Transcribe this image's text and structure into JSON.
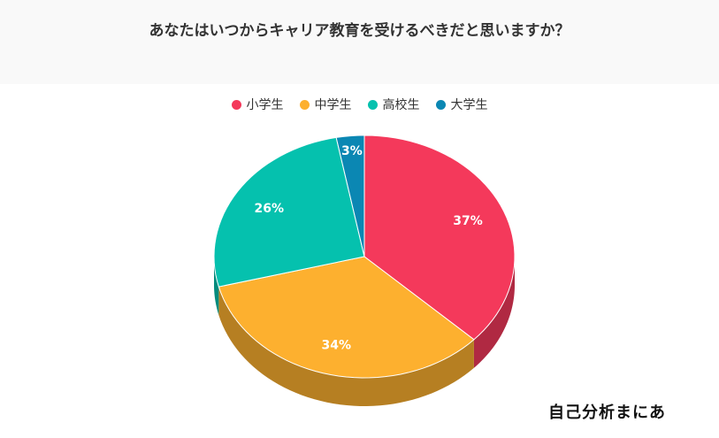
{
  "chart_data": {
    "type": "pie",
    "title": "あなたはいつからキャリア教育を受けるべきだと思いますか？",
    "slices": [
      {
        "label": "小学生",
        "value": 37,
        "display": "37%",
        "color": "#f4395b"
      },
      {
        "label": "中学生",
        "value": 34,
        "display": "34%",
        "color": "#fdb02f"
      },
      {
        "label": "高校生",
        "value": 26,
        "display": "26%",
        "color": "#05c1ae"
      },
      {
        "label": "大学生",
        "value": 3,
        "display": "3%",
        "color": "#0b87b3"
      }
    ],
    "legend_position": "top"
  },
  "brand": {
    "text": "自己分析まにあ"
  }
}
